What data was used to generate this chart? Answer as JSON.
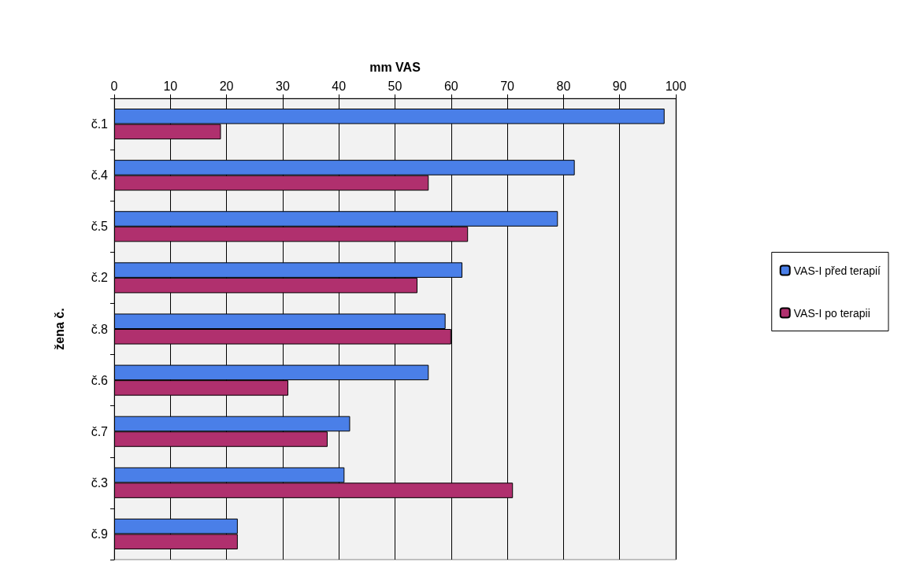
{
  "chart_data": {
    "type": "bar",
    "orientation": "horizontal",
    "xlabel": "mm VAS",
    "ylabel": "žena č.",
    "categories": [
      "č.1",
      "č.4",
      "č.5",
      "č.2",
      "č.8",
      "č.6",
      "č.7",
      "č.3",
      "č.9"
    ],
    "series": [
      {
        "name": "VAS-I před terapií",
        "color": "#4a7fe8",
        "values": [
          98,
          82,
          79,
          62,
          59,
          56,
          42,
          41,
          22
        ]
      },
      {
        "name": "VAS-I po terapii",
        "color": "#b0306e",
        "values": [
          19,
          56,
          63,
          54,
          60,
          31,
          38,
          71,
          22
        ]
      }
    ],
    "xlim": [
      0,
      100
    ],
    "xticks": [
      0,
      10,
      20,
      30,
      40,
      50,
      60,
      70,
      80,
      90,
      100
    ],
    "grid": "x",
    "legend": "right"
  }
}
